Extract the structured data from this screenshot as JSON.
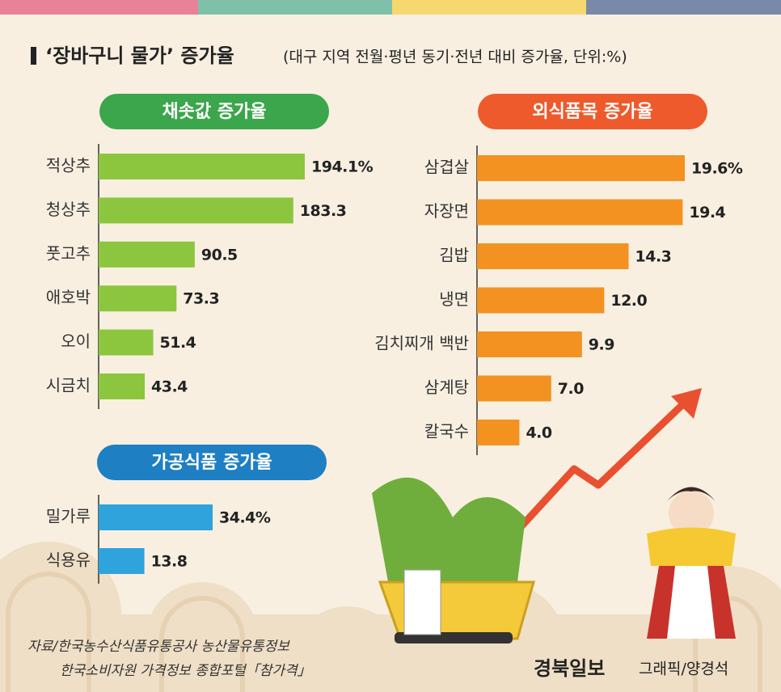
{
  "title": "‘장바구니 물가’ 증가율",
  "subtitle": "(대구 지역 전월·평년 동기·전년 대비 증가율, 단위:%)",
  "chart_data": [
    {
      "type": "bar",
      "orientation": "horizontal",
      "title": "채솟값 증가율",
      "title_color": "#3ba64b",
      "categories": [
        "적상추",
        "청상추",
        "풋고추",
        "애호박",
        "오이",
        "시금치"
      ],
      "values": [
        194.1,
        183.3,
        90.5,
        73.3,
        51.4,
        43.4
      ],
      "value_labels": [
        "194.1%",
        "183.3",
        "90.5",
        "73.3",
        "51.4",
        "43.4"
      ],
      "color": "#8cc63f"
    },
    {
      "type": "bar",
      "orientation": "horizontal",
      "title": "외식품목 증가율",
      "title_color": "#ee5a2b",
      "categories": [
        "삼겹살",
        "자장면",
        "김밥",
        "냉면",
        "김치찌개 백반",
        "삼계탕",
        "칼국수"
      ],
      "values": [
        19.6,
        19.4,
        14.3,
        12.0,
        9.9,
        7.0,
        4.0
      ],
      "value_labels": [
        "19.6%",
        "19.4",
        "14.3",
        "12.0",
        "9.9",
        "7.0",
        "4.0"
      ],
      "color": "#f39221"
    },
    {
      "type": "bar",
      "orientation": "horizontal",
      "title": "가공식품 증가율",
      "title_color": "#1e7fc3",
      "categories": [
        "밀가루",
        "식용유"
      ],
      "values": [
        34.4,
        13.8
      ],
      "value_labels": [
        "34.4%",
        "13.8"
      ],
      "color": "#2ea3dc"
    }
  ],
  "source": [
    "자료/한국농수산식품유통공사 농산물유통정보",
    "한국소비자원 가격정보 종합포털「참가격」"
  ],
  "brand": "경북일보",
  "credit": "그래픽/양경석"
}
